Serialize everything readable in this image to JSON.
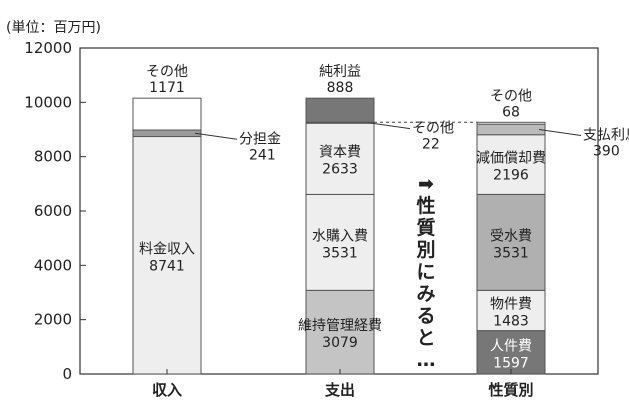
{
  "chart_data": {
    "type": "bar",
    "stacked": true,
    "unit_label": "(単位：百万円)",
    "ylim": [
      0,
      12000
    ],
    "yticks": [
      0,
      2000,
      4000,
      6000,
      8000,
      10000,
      12000
    ],
    "grid": false,
    "categories": [
      "収入",
      "支出",
      "性質別"
    ],
    "stacks": [
      [
        {
          "name": "料金収入",
          "value": 8741,
          "color": "#eeeeee",
          "label": "inside"
        },
        {
          "name": "分担金",
          "value": 241,
          "color": "#9b9b9b",
          "label": "right"
        },
        {
          "name": "その他",
          "value": 1171,
          "color": "#ffffff",
          "label": "top"
        }
      ],
      [
        {
          "name": "維持管理経費",
          "value": 3079,
          "color": "#c4c4c4",
          "label": "inside"
        },
        {
          "name": "水購入費",
          "value": 3531,
          "color": "#eeeeee",
          "label": "inside"
        },
        {
          "name": "資本費",
          "value": 2633,
          "color": "#eeeeee",
          "label": "inside"
        },
        {
          "name": "その他",
          "value": 22,
          "color": "#bbbbbb",
          "label": "right"
        },
        {
          "name": "純利益",
          "value": 888,
          "color": "#777777",
          "label": "top"
        }
      ],
      [
        {
          "name": "人件費",
          "value": 1597,
          "color": "#777777",
          "label": "inside"
        },
        {
          "name": "物件費",
          "value": 1483,
          "color": "#eeeeee",
          "label": "inside"
        },
        {
          "name": "受水費",
          "value": 3531,
          "color": "#b0b0b0",
          "label": "inside"
        },
        {
          "name": "減価償却費",
          "value": 2196,
          "color": "#eeeeee",
          "label": "inside"
        },
        {
          "name": "支払利息",
          "value": 390,
          "color": "#bbbbbb",
          "label": "right"
        },
        {
          "name": "その他",
          "value": 68,
          "color": "#ffffff",
          "label": "top"
        }
      ]
    ],
    "annotation": "➡性質別にみると…"
  }
}
